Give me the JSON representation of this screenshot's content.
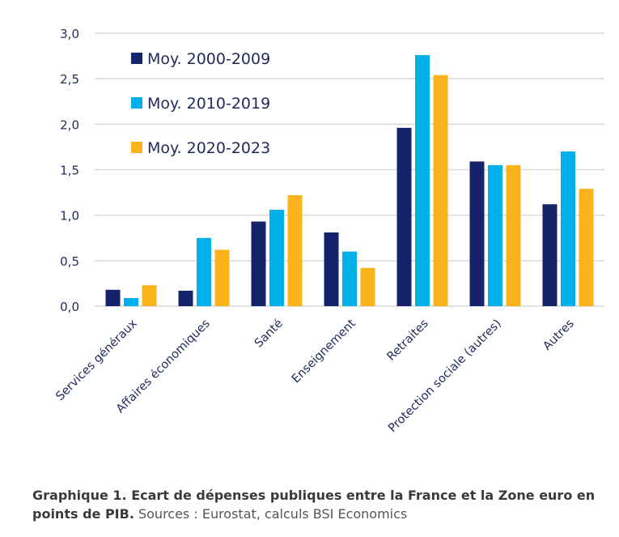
{
  "chart_data": {
    "type": "bar",
    "title": "",
    "xlabel": "",
    "ylabel": "",
    "ylim": [
      0,
      3.0
    ],
    "yticks": [
      "0,0",
      "0,5",
      "1,0",
      "1,5",
      "2,0",
      "2,5",
      "3,0"
    ],
    "ytick_values": [
      0,
      0.5,
      1.0,
      1.5,
      2.0,
      2.5,
      3.0
    ],
    "grid": true,
    "legend_position": "top-left",
    "categories": [
      "Services généraux",
      "Affaires économiques",
      "Santé",
      "Enseignement",
      "Retraites",
      "Protection sociale (autres)",
      "Autres"
    ],
    "series": [
      {
        "name": "Moy. 2000-2009",
        "color": "#14236a",
        "values": [
          0.18,
          0.17,
          0.93,
          0.81,
          1.96,
          1.59,
          1.12
        ]
      },
      {
        "name": "Moy. 2010-2019",
        "color": "#00b0e8",
        "values": [
          0.09,
          0.75,
          1.06,
          0.6,
          2.76,
          1.55,
          1.7
        ]
      },
      {
        "name": "Moy. 2020-2023",
        "color": "#fbb31b",
        "values": [
          0.23,
          0.62,
          1.22,
          0.42,
          2.54,
          1.55,
          1.29
        ]
      }
    ]
  },
  "caption": {
    "bold": "Graphique 1. Ecart de dépenses publiques entre la France et la Zone euro en points de PIB.",
    "sources": " Sources : Eurostat, calculs BSI Economics"
  }
}
